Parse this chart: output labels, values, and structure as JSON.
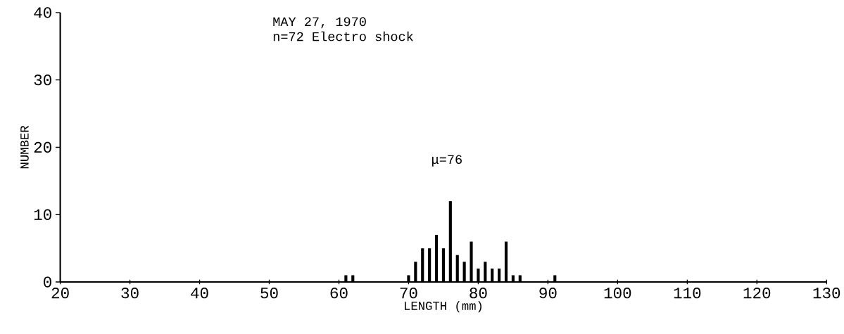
{
  "chart_data": {
    "type": "histogram",
    "title": "MAY 27, 1970",
    "subtitle": "n=72 Electro shock",
    "xlabel": "LENGTH (mm)",
    "ylabel": "NUMBER",
    "annotations": [
      "μ=76"
    ],
    "bins": [
      60.5,
      61.5,
      62.5,
      63.5,
      64.5,
      65.5,
      66.5,
      67.5,
      68.5,
      69.5,
      70.5,
      71.5,
      72.5,
      73.5,
      74.5,
      75.5,
      76.5,
      77.5,
      78.5,
      79.5,
      80.5,
      81.5,
      82.5,
      83.5,
      84.5,
      85.5,
      86.5,
      87.5,
      88.5,
      89.5,
      90.5,
      91.5
    ],
    "values": [
      1,
      1,
      0,
      0,
      0,
      0,
      0,
      0,
      0,
      1,
      3,
      5,
      5,
      7,
      5,
      12,
      4,
      3,
      6,
      2,
      3,
      2,
      2,
      6,
      1,
      1,
      0,
      0,
      0,
      0,
      1
    ],
    "color": "#000000",
    "xlim": [
      20,
      130
    ],
    "xticks": [
      20,
      30,
      40,
      50,
      60,
      70,
      80,
      90,
      100,
      110,
      120,
      130
    ],
    "ylim": [
      0,
      40
    ],
    "yticks": [
      0,
      10,
      20,
      30,
      40
    ],
    "grid": false
  }
}
